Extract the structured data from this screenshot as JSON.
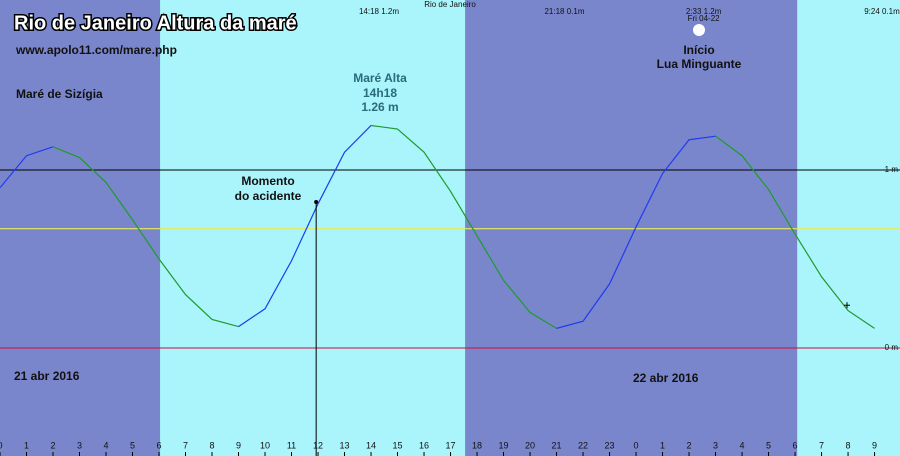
{
  "chart_data": {
    "type": "line",
    "title": "Rio de Janeiro Altura da maré",
    "subtitle": "www.apolo11.com/mare.php",
    "location": "Rio de Janeiro",
    "x": [
      0,
      1,
      2,
      3,
      4,
      5,
      6,
      7,
      8,
      9,
      10,
      11,
      12,
      13,
      14,
      15,
      16,
      17,
      18,
      19,
      20,
      21,
      22,
      23,
      24,
      25,
      26,
      27,
      28,
      29,
      30,
      31,
      32,
      33
    ],
    "values": [
      0.9,
      1.08,
      1.13,
      1.07,
      0.93,
      0.72,
      0.5,
      0.3,
      0.16,
      0.12,
      0.22,
      0.49,
      0.81,
      1.1,
      1.25,
      1.23,
      1.1,
      0.88,
      0.63,
      0.38,
      0.2,
      0.11,
      0.15,
      0.36,
      0.68,
      0.98,
      1.17,
      1.19,
      1.08,
      0.89,
      0.64,
      0.4,
      0.21,
      0.11
    ],
    "rising_color": "#1f3cf0",
    "falling_color": "#1f9a2a",
    "xlim": [
      0,
      33.96
    ],
    "ylim": [
      -0.607,
      1.955
    ],
    "xticks": [
      0,
      1,
      2,
      3,
      4,
      5,
      6,
      7,
      8,
      9,
      10,
      11,
      12,
      13,
      14,
      15,
      16,
      17,
      18,
      19,
      20,
      21,
      22,
      23,
      {
        "value": 24,
        "label": "0"
      },
      {
        "value": 25,
        "label": "1"
      },
      {
        "value": 26,
        "label": "2"
      },
      {
        "value": 27,
        "label": "3"
      },
      {
        "value": 28,
        "label": "4"
      },
      {
        "value": 29,
        "label": "5"
      },
      {
        "value": 30,
        "label": "6"
      },
      {
        "value": 31,
        "label": "7"
      },
      {
        "value": 32,
        "label": "8"
      },
      {
        "value": 33,
        "label": "9"
      }
    ],
    "yticks": [
      {
        "value": 0,
        "label": "0 m"
      },
      {
        "value": 1,
        "label": "1 m"
      }
    ],
    "ytick_colors": [
      "#d0103a",
      "#000000"
    ],
    "mean_level": 0.67,
    "mean_level_color": "#e8e85a",
    "night_color": "#7a86cc",
    "day_color": "#aaf4fb",
    "night_bands": [
      [
        0,
        6.04
      ],
      [
        17.55,
        30.08
      ]
    ],
    "extremes": [
      {
        "x": 14.3,
        "value": 1.2,
        "label": "14:18 1.2m"
      },
      {
        "x": 21.3,
        "value": 0.1,
        "label": "21:18 0.1m"
      },
      {
        "x": 26.55,
        "value": 1.2,
        "label": "2:33 1.2m"
      },
      {
        "x": 33.4,
        "value": 0.1,
        "label": "9:24 0.1m"
      }
    ],
    "moon_date": "Fri 04-22",
    "accident": {
      "x": 11.93,
      "value": 0.82,
      "label_lines": [
        "Momento",
        "do acidente"
      ]
    },
    "cursor": {
      "x": 31.96,
      "value": 0.24
    },
    "annotations": {
      "spring_tide": "Maré de Sizígia",
      "date_1": "21 abr 2016",
      "date_2": "22 abr 2016",
      "high_tide": [
        "Maré Alta",
        "14h18",
        "1.26 m"
      ],
      "moon_phase": [
        "Início",
        "Lua Minguante"
      ]
    }
  }
}
